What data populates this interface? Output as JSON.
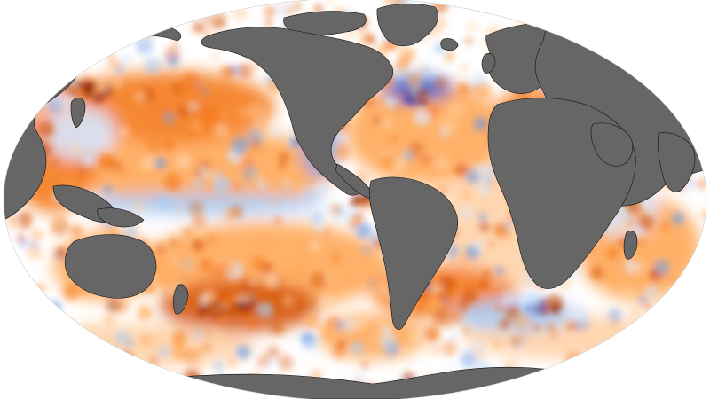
{
  "map": {
    "projection": "winkel-tripel",
    "variable": "sea-surface-temperature-anomaly",
    "land_color": "#666666",
    "land_border_color": "#111111",
    "ocean_neutral_color": "#ffffff",
    "warm_colors": [
      "#ffd3a8",
      "#ffa95a",
      "#f57b1e",
      "#d6560a",
      "#a33100",
      "#7a0d0d"
    ],
    "cool_colors": [
      "#d7e8ff",
      "#a9ccf5",
      "#6f9ee8",
      "#3a5fd0",
      "#2a2fa0"
    ],
    "graticule": false,
    "legend": "none"
  }
}
